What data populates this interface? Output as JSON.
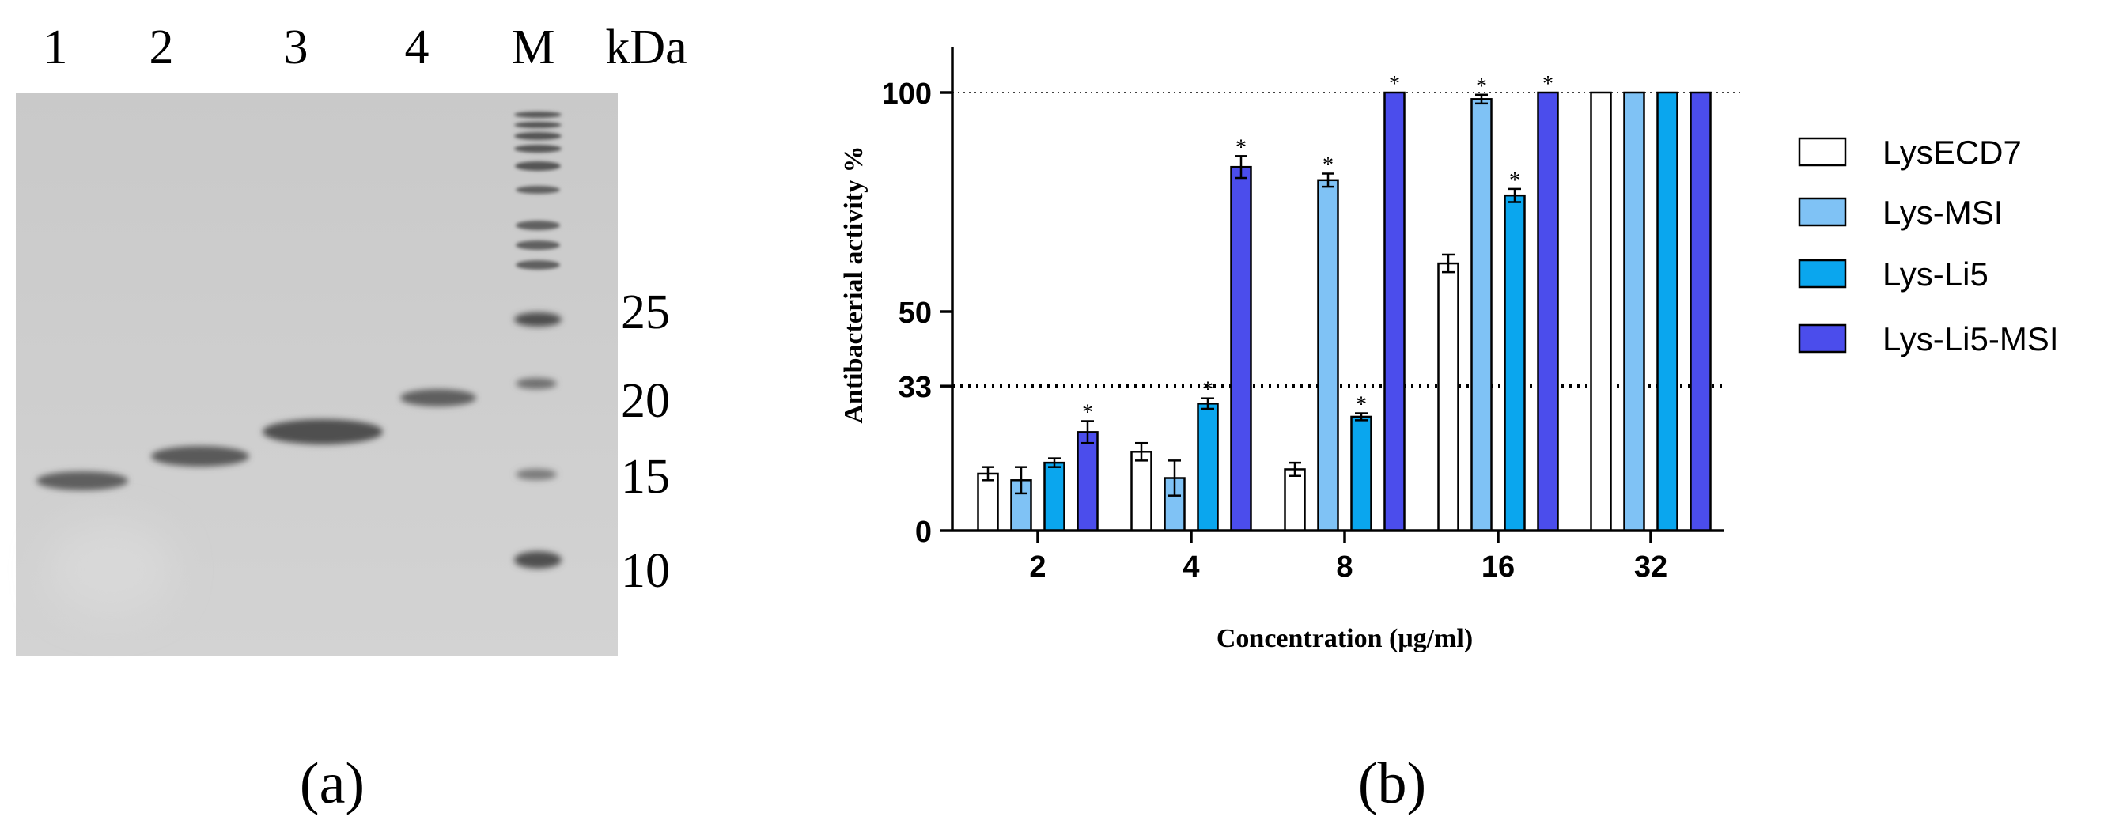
{
  "gel": {
    "lane_labels": [
      "1",
      "2",
      "3",
      "4",
      "M"
    ],
    "unit_label": "kDa",
    "marker_labels": [
      "25",
      "20",
      "15",
      "10"
    ]
  },
  "panel_labels": {
    "a": "(a)",
    "b": "(b)"
  },
  "colors": {
    "LysECD7": "#ffffff",
    "Lys-MSI": "#7fc2f5",
    "Lys-Li5": "#0aa6ee",
    "Lys-Li5-MSI": "#4b4dec"
  },
  "chart_data": {
    "type": "bar",
    "title": "",
    "xlabel": "Concentration (μg/ml)",
    "ylabel": "Antibacterial activity %",
    "categories": [
      "2",
      "4",
      "8",
      "16",
      "32"
    ],
    "ylim": [
      0,
      110
    ],
    "yticks": [
      "0",
      "33",
      "50",
      "100"
    ],
    "reference_lines": [
      {
        "value": 100,
        "style": "dotted-thin"
      },
      {
        "value": 33,
        "style": "dotted-thick"
      }
    ],
    "series": [
      {
        "name": "LysECD7",
        "values": [
          13,
          18,
          14,
          61,
          100
        ],
        "errors": [
          1.5,
          2,
          1.5,
          2,
          0
        ],
        "significant": [
          false,
          false,
          false,
          false,
          false
        ]
      },
      {
        "name": "Lys-MSI",
        "values": [
          11.5,
          12,
          80,
          98.5,
          100
        ],
        "errors": [
          3,
          4,
          1.5,
          1,
          0
        ],
        "significant": [
          false,
          false,
          true,
          true,
          false
        ]
      },
      {
        "name": "Lys-Li5",
        "values": [
          15.5,
          29,
          26,
          76.5,
          100
        ],
        "errors": [
          1,
          1.2,
          0.8,
          1.5,
          0
        ],
        "significant": [
          false,
          true,
          true,
          true,
          false
        ]
      },
      {
        "name": "Lys-Li5-MSI",
        "values": [
          22.5,
          83,
          100,
          100,
          100
        ],
        "errors": [
          2.5,
          2.5,
          0,
          0,
          0
        ],
        "significant": [
          true,
          true,
          true,
          true,
          false
        ]
      }
    ],
    "significance_marker": "*",
    "legend_position": "right"
  }
}
